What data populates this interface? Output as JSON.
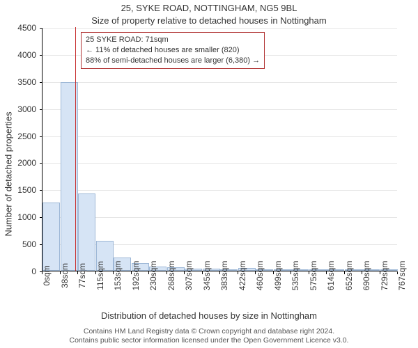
{
  "chart": {
    "type": "histogram",
    "title": "25, SYKE ROAD, NOTTINGHAM, NG5 9BL",
    "subtitle": "Size of property relative to detached houses in Nottingham",
    "ylabel": "Number of detached properties",
    "xlabel": "Distribution of detached houses by size in Nottingham",
    "background_color": "#ffffff",
    "grid_color": "#e6e6e6",
    "axis_color": "#000000",
    "title_fontsize": 13,
    "label_fontsize": 13,
    "tick_fontsize": 12,
    "ylim": [
      0,
      4500
    ],
    "ytick_step": 500,
    "bar_fill": "#d6e4f5",
    "bar_border": "#9db7d6",
    "bar_width_ratio": 0.98,
    "marker_color": "#c83232",
    "marker_xvalue": 71,
    "x_ticks": [
      "0sqm",
      "38sqm",
      "77sqm",
      "115sqm",
      "153sqm",
      "192sqm",
      "230sqm",
      "268sqm",
      "307sqm",
      "345sqm",
      "383sqm",
      "422sqm",
      "460sqm",
      "499sqm",
      "535sqm",
      "575sqm",
      "614sqm",
      "652sqm",
      "690sqm",
      "729sqm",
      "767sqm"
    ],
    "x_tick_count": 21,
    "bars": [
      1260,
      3480,
      1430,
      550,
      245,
      140,
      80,
      60,
      45,
      35,
      30,
      55,
      15,
      10,
      8,
      6,
      5,
      4,
      4,
      3
    ],
    "annotation": {
      "line1": "25 SYKE ROAD: 71sqm",
      "line2": "← 11% of detached houses are smaller (820)",
      "line3": "88% of semi-detached houses are larger (6,380) →",
      "border_color": "#b03030"
    },
    "credits_line1": "Contains HM Land Registry data © Crown copyright and database right 2024.",
    "credits_line2": "Contains public sector information licensed under the Open Government Licence v3.0."
  }
}
